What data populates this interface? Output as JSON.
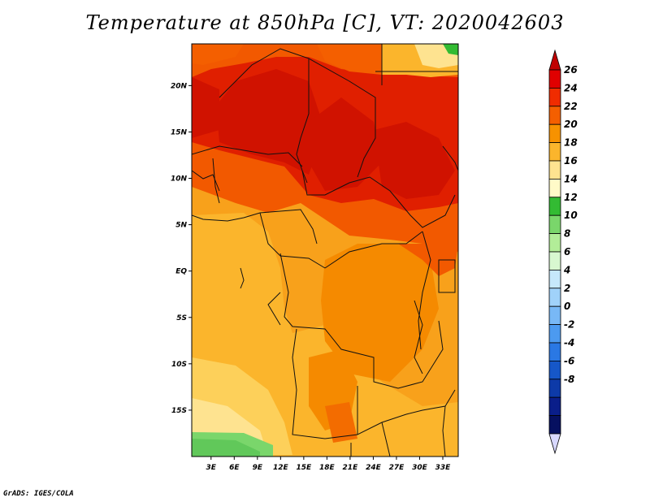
{
  "title": "Temperature at 850hPa [C], VT: 2020042603",
  "credit": "GrADS: IGES/COLA",
  "map": {
    "lat_labels": [
      "20N",
      "15N",
      "10N",
      "5N",
      "EQ",
      "5S",
      "10S",
      "15S"
    ],
    "lon_labels": [
      "3E",
      "6E",
      "9E",
      "12E",
      "15E",
      "18E",
      "21E",
      "24E",
      "27E",
      "30E",
      "33E"
    ],
    "lat_range": [
      -20,
      24.5
    ],
    "lon_range": [
      0.5,
      35
    ],
    "lat_values": [
      20,
      15,
      10,
      5,
      0,
      -5,
      -10,
      -15
    ],
    "lon_values": [
      3,
      6,
      9,
      12,
      15,
      18,
      21,
      24,
      27,
      30,
      33
    ]
  },
  "colorbar": {
    "labels": [
      "26",
      "24",
      "22",
      "20",
      "18",
      "16",
      "14",
      "12",
      "10",
      "8",
      "6",
      "4",
      "2",
      "0",
      "-2",
      "-4",
      "-6",
      "-8"
    ],
    "colors": [
      "#c00000",
      "#e00000",
      "#f02c00",
      "#f45f00",
      "#f79200",
      "#fbb52c",
      "#fee390",
      "#fffac8",
      "#33bb33",
      "#7ad66b",
      "#b2ed98",
      "#d8f8d0",
      "#c6e8fb",
      "#a0d2fa",
      "#78b8f6",
      "#4c9af0",
      "#2a78e4",
      "#1657c8",
      "#0d3aa8",
      "#0a1e8a",
      "#061060",
      "#d8d8ff"
    ]
  }
}
